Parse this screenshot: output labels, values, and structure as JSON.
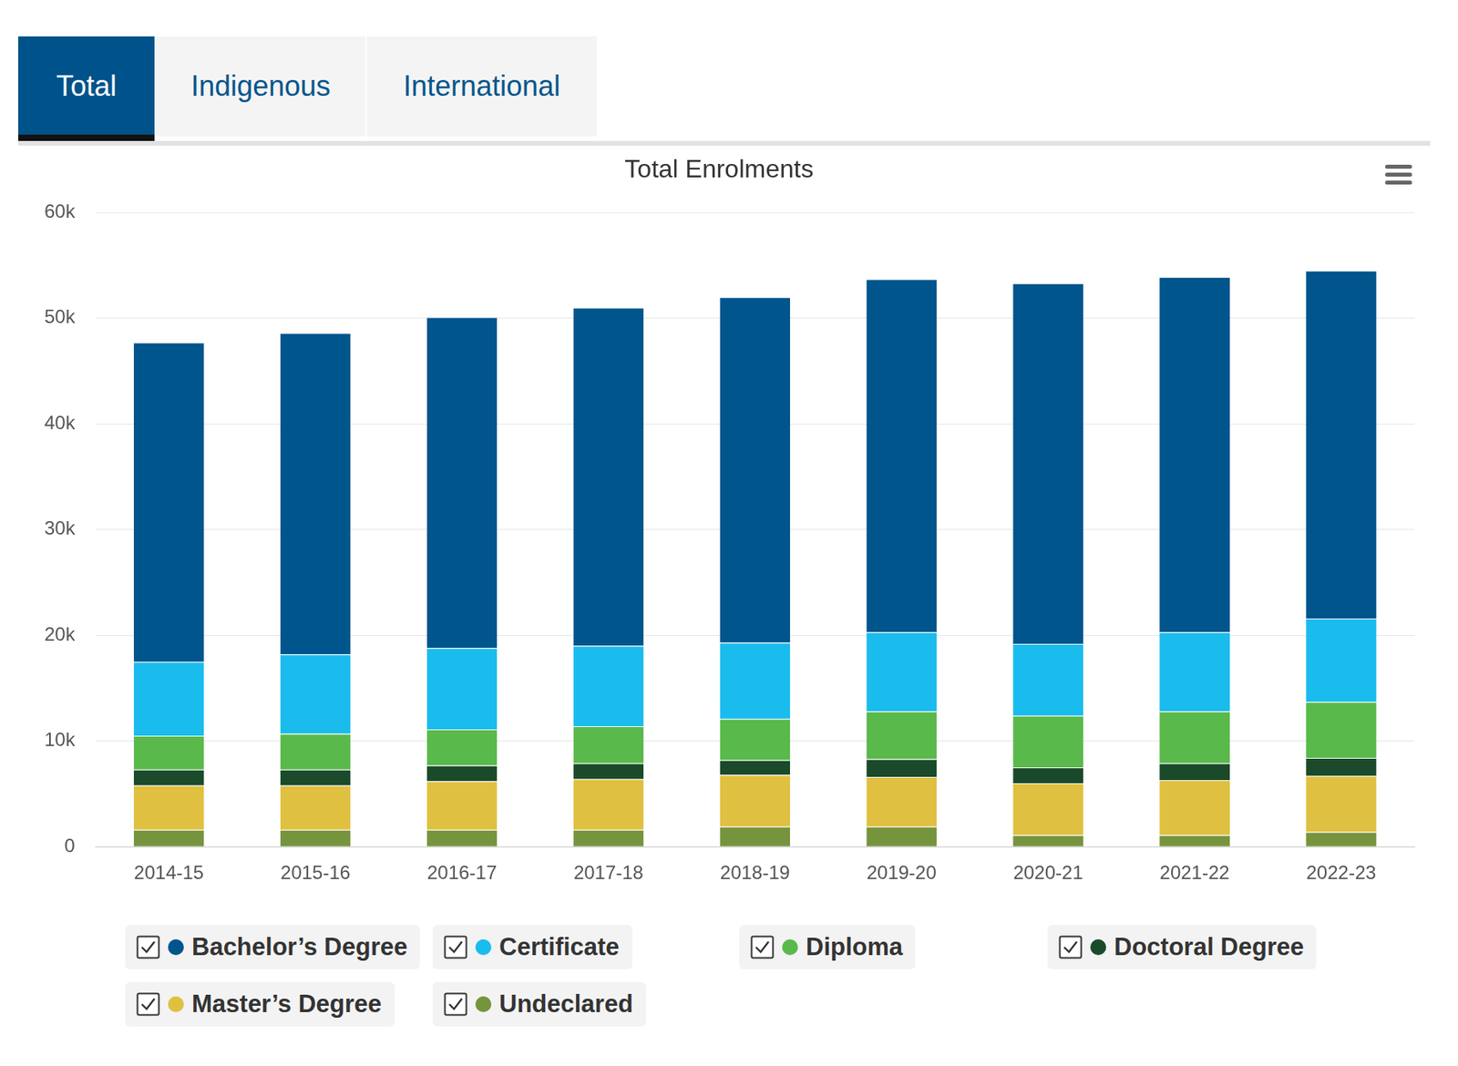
{
  "tabs": [
    {
      "label": "Total",
      "selected": true
    },
    {
      "label": "Indigenous",
      "selected": false
    },
    {
      "label": "International",
      "selected": false
    }
  ],
  "chart_data": {
    "type": "bar",
    "title": "Total Enrolments",
    "stacked": true,
    "grid": true,
    "legend": "bottom",
    "categories": [
      "2014-15",
      "2015-16",
      "2016-17",
      "2017-18",
      "2018-19",
      "2019-20",
      "2020-21",
      "2021-22",
      "2022-23"
    ],
    "series": [
      {
        "name": "Bachelor’s Degree",
        "color": "#00558c",
        "values": [
          30200,
          30400,
          31300,
          32000,
          32700,
          33400,
          34100,
          33600,
          32900
        ]
      },
      {
        "name": "Certificate",
        "color": "#1abcee",
        "values": [
          7000,
          7500,
          7700,
          7600,
          7200,
          7500,
          6800,
          7500,
          7900
        ]
      },
      {
        "name": "Diploma",
        "color": "#5ab94b",
        "values": [
          3200,
          3400,
          3400,
          3500,
          3900,
          4500,
          4900,
          4900,
          5300
        ]
      },
      {
        "name": "Doctoral Degree",
        "color": "#1b4a2a",
        "values": [
          1500,
          1500,
          1500,
          1500,
          1400,
          1700,
          1500,
          1600,
          1700
        ]
      },
      {
        "name": "Master’s Degree",
        "color": "#e0c040",
        "values": [
          4200,
          4200,
          4600,
          4800,
          4900,
          4700,
          4900,
          5200,
          5300
        ]
      },
      {
        "name": "Undeclared",
        "color": "#76943e",
        "values": [
          1600,
          1600,
          1600,
          1600,
          1900,
          1900,
          1100,
          1100,
          1400
        ]
      }
    ],
    "ylim": [
      0,
      60000
    ],
    "yticks": [
      0,
      {
        "value": 10000,
        "label": "10k"
      },
      {
        "value": 20000,
        "label": "20k"
      },
      {
        "value": 30000,
        "label": "30k"
      },
      {
        "value": 40000,
        "label": "40k"
      },
      {
        "value": 50000,
        "label": "50k"
      },
      {
        "value": 60000,
        "label": "60k"
      }
    ]
  }
}
